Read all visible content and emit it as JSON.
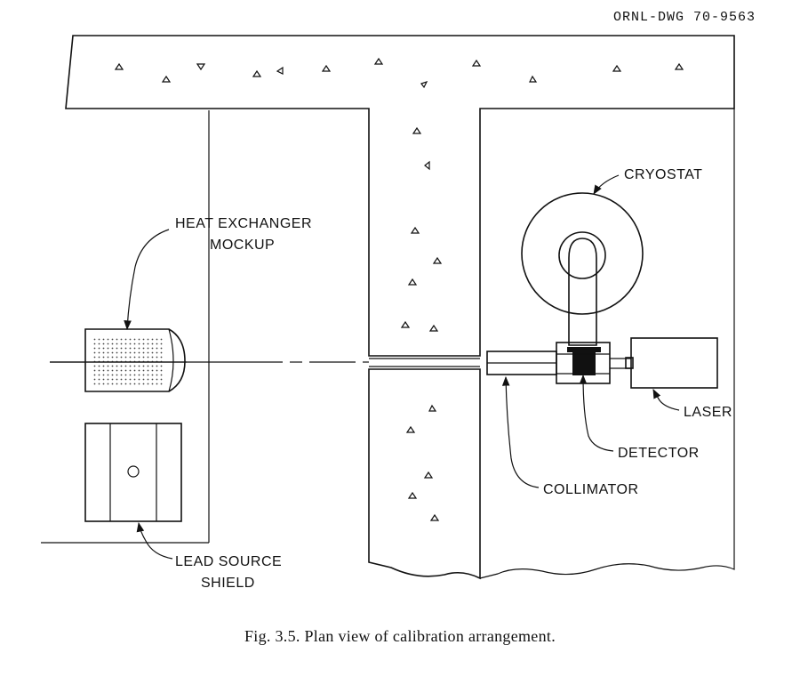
{
  "drawing_number": "ORNL-DWG 70-9563",
  "labels": {
    "cryostat": "CRYOSTAT",
    "heat_exchanger_1": "HEAT EXCHANGER",
    "heat_exchanger_2": "MOCKUP",
    "laser": "LASER",
    "detector": "DETECTOR",
    "collimator": "COLLIMATOR",
    "lead_source_1": "LEAD SOURCE",
    "lead_source_2": "SHIELD"
  },
  "caption": "Fig. 3.5.  Plan view of calibration arrangement."
}
